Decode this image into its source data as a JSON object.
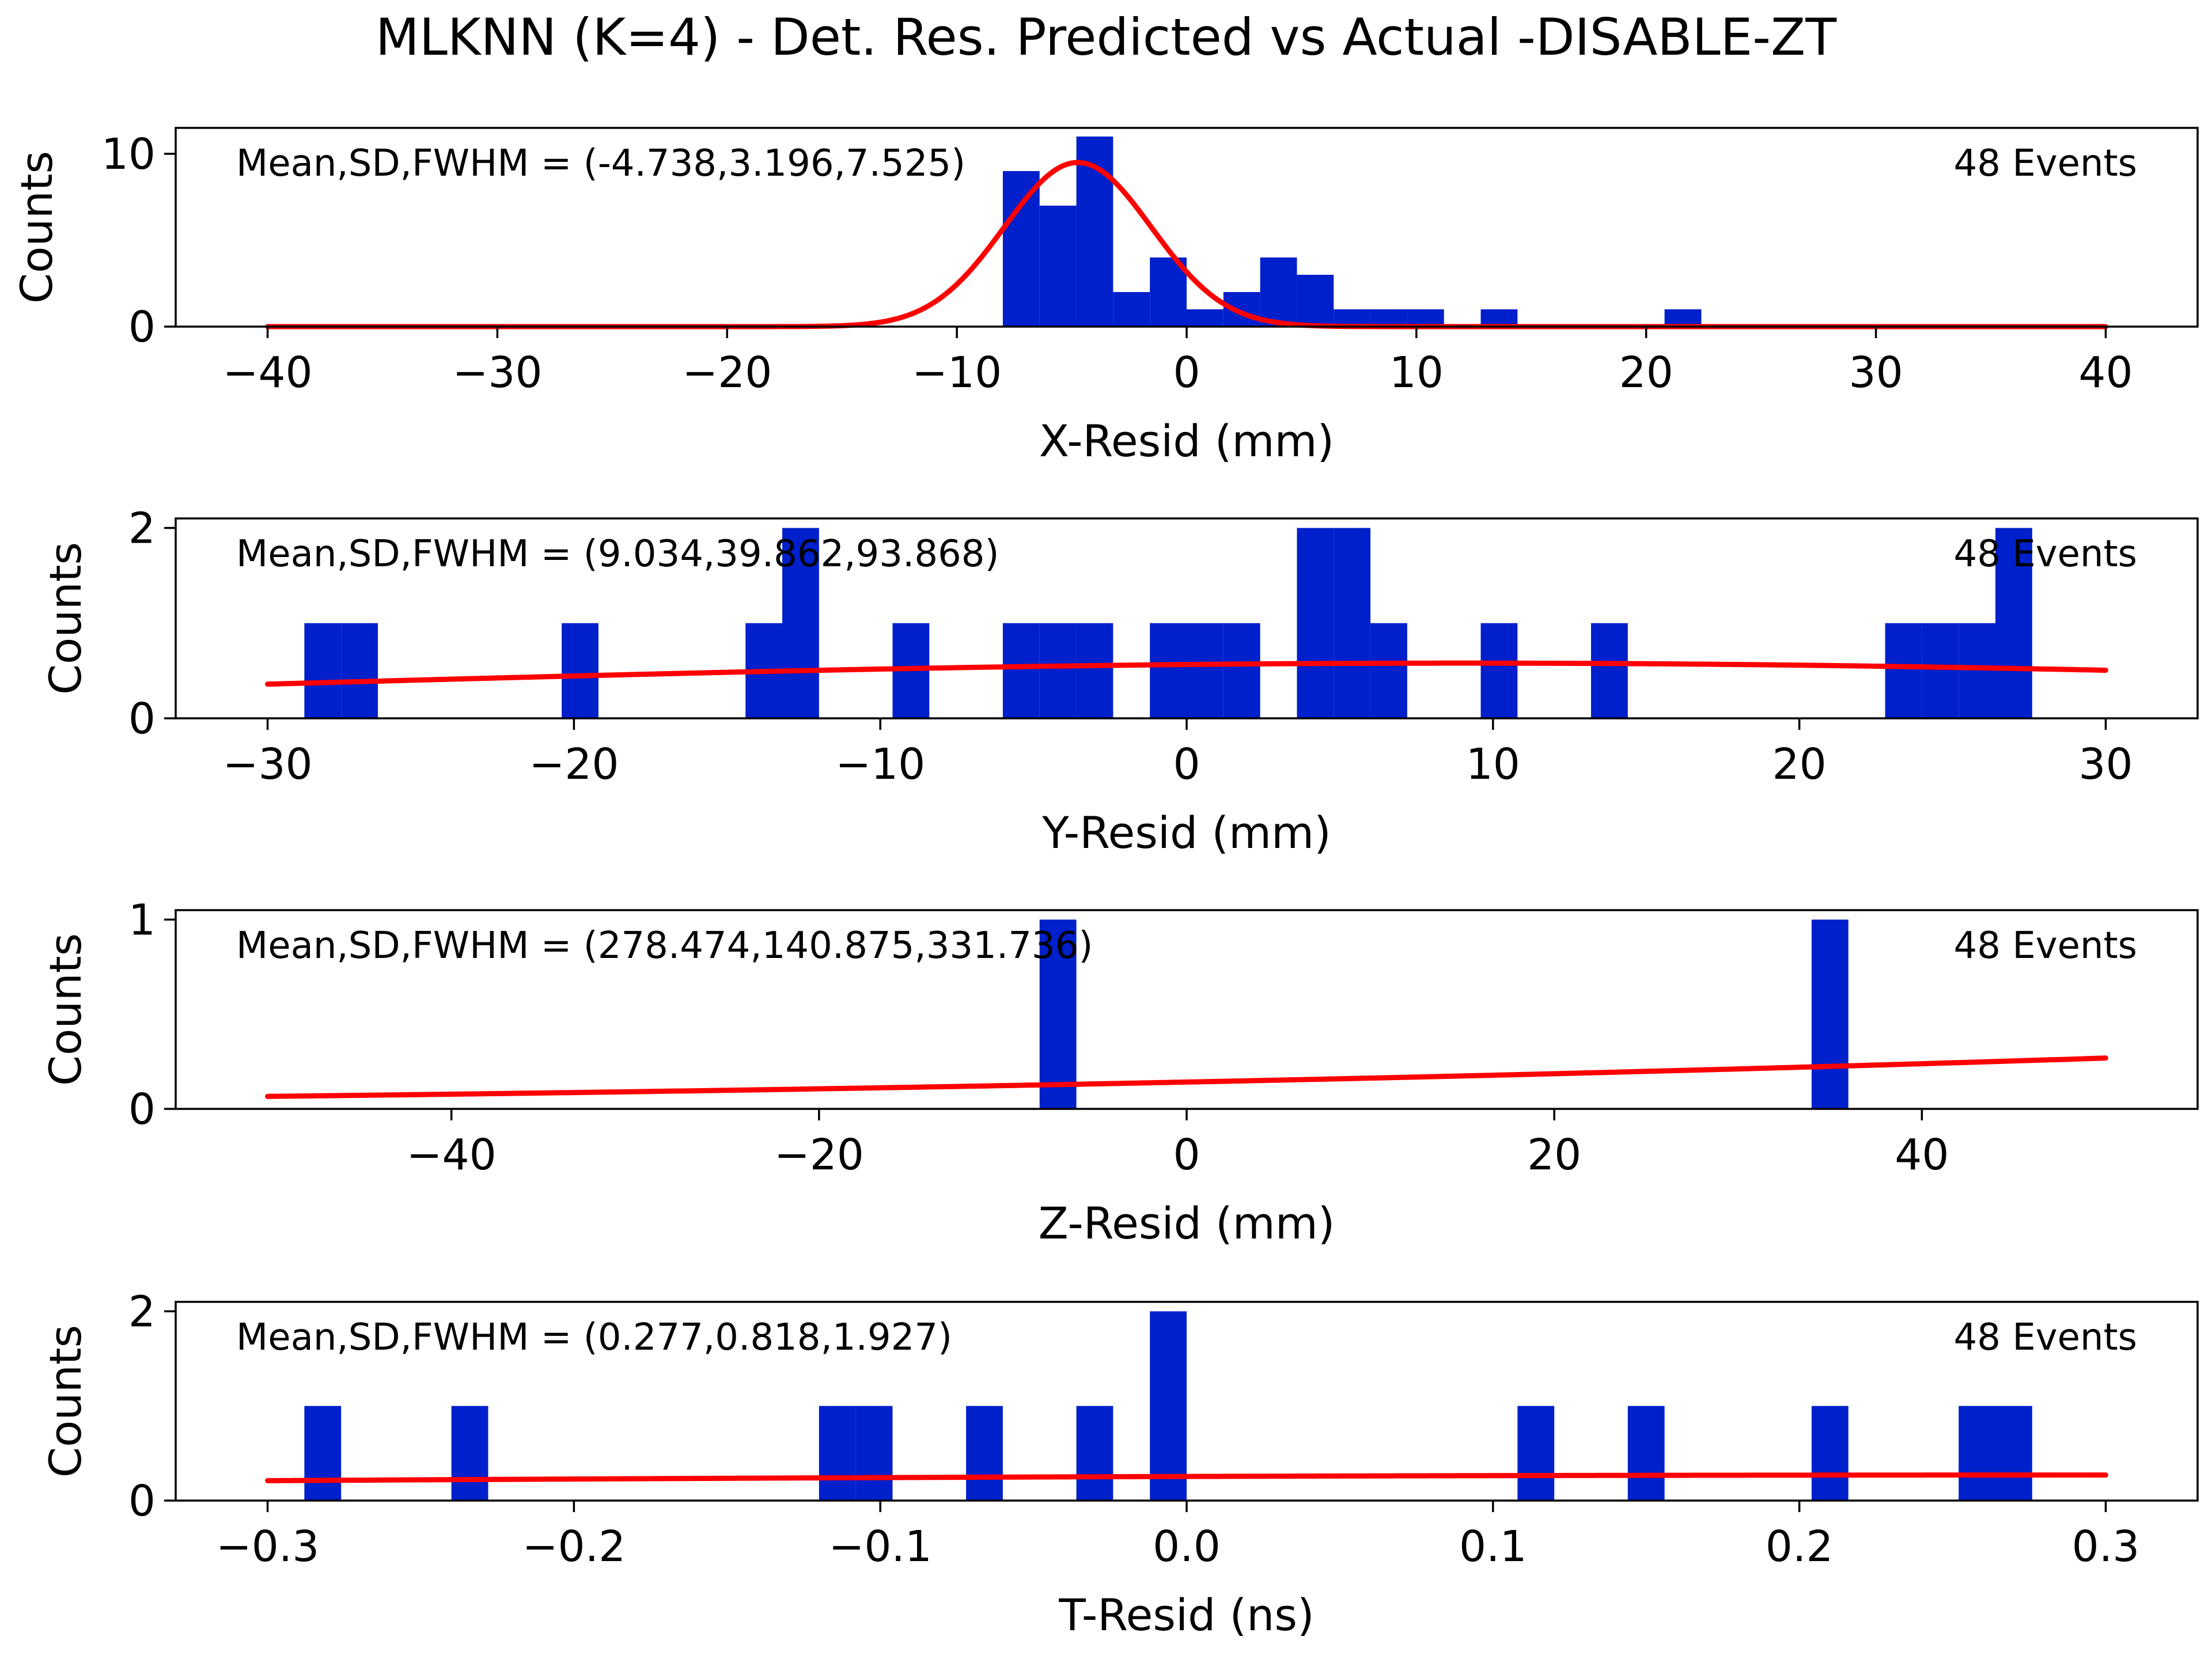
{
  "figure": {
    "title": "MLKNN (K=4) - Det. Res. Predicted vs Actual -DISABLE-ZT"
  },
  "colors": {
    "bar": "#0020cc",
    "fit": "#ff0000",
    "axes": "#000000"
  },
  "chart_data": [
    {
      "type": "bar",
      "xlabel": "X-Resid (mm)",
      "ylabel": "Counts",
      "annotation": "Mean,SD,FWHM = (-4.738,3.196,7.525)",
      "events": "48 Events",
      "xlim": [
        -44,
        44
      ],
      "ylim": [
        0,
        11.5
      ],
      "xticks": [
        -40,
        -30,
        -20,
        -10,
        0,
        10,
        20,
        30,
        40
      ],
      "xtick_labels": [
        "−40",
        "−30",
        "−20",
        "−10",
        "0",
        "10",
        "20",
        "30",
        "40"
      ],
      "yticks": [
        0,
        10
      ],
      "ytick_labels": [
        "0",
        "10"
      ],
      "bin_width": 1.6,
      "bins": [
        {
          "x": -8.0,
          "count": 9
        },
        {
          "x": -6.4,
          "count": 7
        },
        {
          "x": -4.8,
          "count": 11
        },
        {
          "x": -3.2,
          "count": 2
        },
        {
          "x": -1.6,
          "count": 4
        },
        {
          "x": 0.0,
          "count": 1
        },
        {
          "x": 1.6,
          "count": 2
        },
        {
          "x": 3.2,
          "count": 4
        },
        {
          "x": 4.8,
          "count": 3
        },
        {
          "x": 6.4,
          "count": 1
        },
        {
          "x": 8.0,
          "count": 1
        },
        {
          "x": 9.6,
          "count": 1
        },
        {
          "x": 12.8,
          "count": 1
        },
        {
          "x": 20.8,
          "count": 1
        }
      ],
      "fit": {
        "amplitude": 9.5,
        "mean": -4.738,
        "sd": 3.196,
        "range": [
          -40,
          40
        ]
      }
    },
    {
      "type": "bar",
      "xlabel": "Y-Resid (mm)",
      "ylabel": "Counts",
      "annotation": "Mean,SD,FWHM = (9.034,39.862,93.868)",
      "events": "48 Events",
      "xlim": [
        -33,
        33
      ],
      "ylim": [
        0,
        2.1
      ],
      "xticks": [
        -30,
        -20,
        -10,
        0,
        10,
        20,
        30
      ],
      "xtick_labels": [
        "−30",
        "−20",
        "−10",
        "0",
        "10",
        "20",
        "30"
      ],
      "yticks": [
        0,
        2
      ],
      "ytick_labels": [
        "0",
        "2"
      ],
      "bin_width": 1.2,
      "bins": [
        {
          "x": -28.8,
          "count": 1
        },
        {
          "x": -27.6,
          "count": 1
        },
        {
          "x": -20.4,
          "count": 1
        },
        {
          "x": -14.4,
          "count": 1
        },
        {
          "x": -13.2,
          "count": 2
        },
        {
          "x": -9.6,
          "count": 1
        },
        {
          "x": -6.0,
          "count": 1
        },
        {
          "x": -4.8,
          "count": 1
        },
        {
          "x": -3.6,
          "count": 1
        },
        {
          "x": -1.2,
          "count": 1
        },
        {
          "x": 0.0,
          "count": 1
        },
        {
          "x": 1.2,
          "count": 1
        },
        {
          "x": 3.6,
          "count": 2
        },
        {
          "x": 4.8,
          "count": 2
        },
        {
          "x": 6.0,
          "count": 1
        },
        {
          "x": 9.6,
          "count": 1
        },
        {
          "x": 13.2,
          "count": 1
        },
        {
          "x": 22.8,
          "count": 1
        },
        {
          "x": 24.0,
          "count": 1
        },
        {
          "x": 25.2,
          "count": 1
        },
        {
          "x": 26.4,
          "count": 2
        }
      ],
      "fit": {
        "amplitude": 0.58,
        "mean": 9.034,
        "sd": 39.862,
        "range": [
          -30,
          30
        ]
      }
    },
    {
      "type": "bar",
      "xlabel": "Z-Resid (mm)",
      "ylabel": "Counts",
      "annotation": "Mean,SD,FWHM = (278.474,140.875,331.736)",
      "events": "48 Events",
      "xlim": [
        -55,
        55
      ],
      "ylim": [
        0,
        1.05
      ],
      "xticks": [
        -40,
        -20,
        0,
        20,
        40
      ],
      "xtick_labels": [
        "−40",
        "−20",
        "0",
        "20",
        "40"
      ],
      "yticks": [
        0,
        1
      ],
      "ytick_labels": [
        "0",
        "1"
      ],
      "bin_width": 2.0,
      "bins": [
        {
          "x": -8.0,
          "count": 1
        },
        {
          "x": 34.0,
          "count": 1
        }
      ],
      "fit": {
        "amplitude": 1.0,
        "mean": 278.474,
        "sd": 140.875,
        "range": [
          -50,
          50
        ]
      }
    },
    {
      "type": "bar",
      "xlabel": "T-Resid (ns)",
      "ylabel": "Counts",
      "annotation": "Mean,SD,FWHM = (0.277,0.818,1.927)",
      "events": "48 Events",
      "xlim": [
        -0.33,
        0.33
      ],
      "ylim": [
        0,
        2.1
      ],
      "xticks": [
        -0.3,
        -0.2,
        -0.1,
        0.0,
        0.1,
        0.2,
        0.3
      ],
      "xtick_labels": [
        "−0.3",
        "−0.2",
        "−0.1",
        "0.0",
        "0.1",
        "0.2",
        "0.3"
      ],
      "yticks": [
        0,
        2
      ],
      "ytick_labels": [
        "0",
        "2"
      ],
      "bin_width": 0.012,
      "bins": [
        {
          "x": -0.288,
          "count": 1
        },
        {
          "x": -0.24,
          "count": 1
        },
        {
          "x": -0.12,
          "count": 1
        },
        {
          "x": -0.108,
          "count": 1
        },
        {
          "x": -0.072,
          "count": 1
        },
        {
          "x": -0.036,
          "count": 1
        },
        {
          "x": -0.012,
          "count": 2
        },
        {
          "x": 0.108,
          "count": 1
        },
        {
          "x": 0.144,
          "count": 1
        },
        {
          "x": 0.204,
          "count": 1
        },
        {
          "x": 0.252,
          "count": 1
        },
        {
          "x": 0.264,
          "count": 1
        }
      ],
      "fit": {
        "amplitude": 0.27,
        "mean": 0.277,
        "sd": 0.818,
        "range": [
          -0.3,
          0.3
        ]
      }
    }
  ]
}
